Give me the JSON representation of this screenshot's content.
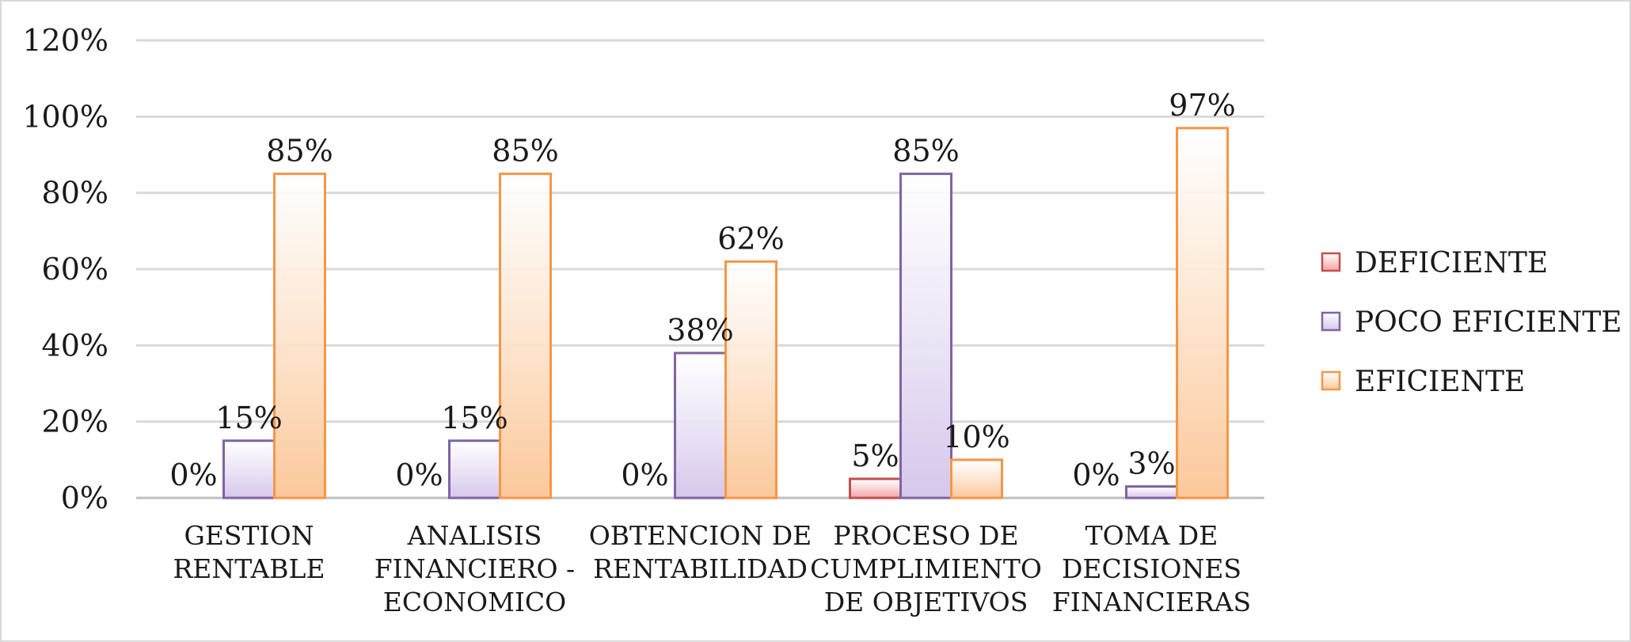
{
  "chart_data": {
    "type": "bar",
    "categories": [
      [
        "GESTION",
        "RENTABLE"
      ],
      [
        "ANALISIS",
        "FINANCIERO -",
        "ECONOMICO"
      ],
      [
        "OBTENCION DE",
        "RENTABILIDAD"
      ],
      [
        "PROCESO DE",
        "CUMPLIMIENTO",
        "DE OBJETIVOS"
      ],
      [
        "TOMA DE",
        "DECISIONES",
        "FINANCIERAS"
      ]
    ],
    "series": [
      {
        "name": "DEFICIENTE",
        "values": [
          0,
          0,
          0,
          5,
          0
        ],
        "labels": [
          "0%",
          "0%",
          "0%",
          "5%",
          "0%"
        ],
        "color": "#f4a3a6",
        "stroke": "#c0504d"
      },
      {
        "name": "POCO EFICIENTE",
        "values": [
          15,
          15,
          38,
          85,
          3
        ],
        "labels": [
          "15%",
          "15%",
          "38%",
          "85%",
          "3%"
        ],
        "color": "#d6c7ec",
        "stroke": "#8064a2"
      },
      {
        "name": "EFICIENTE",
        "values": [
          85,
          85,
          62,
          10,
          97
        ],
        "labels": [
          "85%",
          "85%",
          "62%",
          "10%",
          "97%"
        ],
        "color": "#fcc89b",
        "stroke": "#f79646"
      }
    ],
    "ylim": [
      0,
      120
    ],
    "yticks": [
      {
        "value": 0,
        "label": "0%"
      },
      {
        "value": 20,
        "label": "20%"
      },
      {
        "value": 40,
        "label": "40%"
      },
      {
        "value": 60,
        "label": "60%"
      },
      {
        "value": 80,
        "label": "80%"
      },
      {
        "value": 100,
        "label": "100%"
      },
      {
        "value": 120,
        "label": "120%"
      }
    ],
    "grid": true,
    "legend_position": "right",
    "title": "",
    "xlabel": "",
    "ylabel": ""
  }
}
